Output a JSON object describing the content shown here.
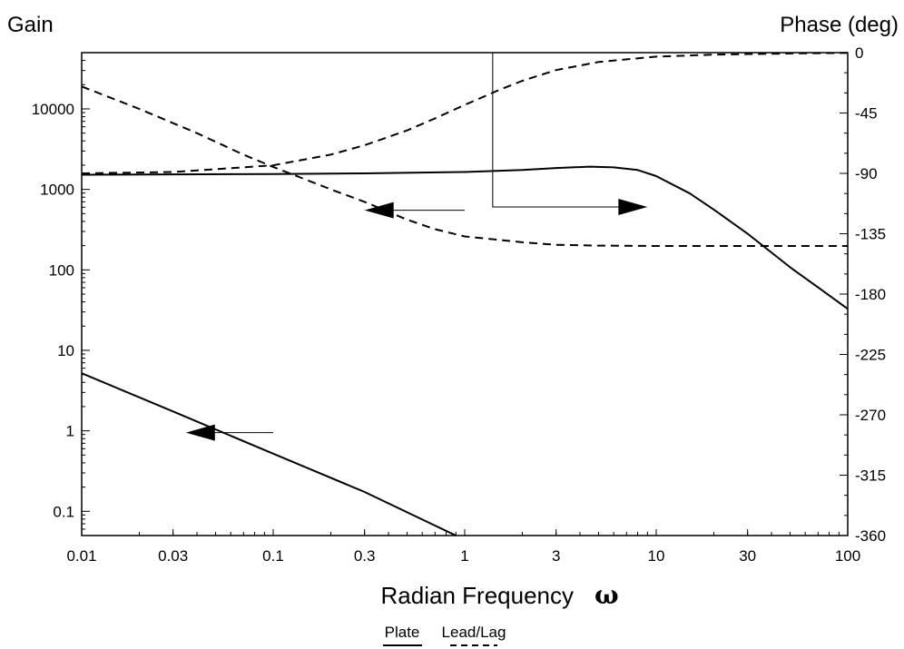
{
  "chart_data": {
    "type": "line",
    "title": "",
    "left_axis_title": "Gain",
    "right_axis_title": "Phase (deg)",
    "xlabel": "Radian Frequency",
    "xlabel_symbol": "ω",
    "x_scale": "log",
    "x_range": [
      0.01,
      100
    ],
    "x_tick_labels": [
      "0.01",
      "0.03",
      "0.1",
      "0.3",
      "1",
      "3",
      "10",
      "30",
      "100"
    ],
    "y_left_scale": "log",
    "y_left_range": [
      0.05,
      50000
    ],
    "y_left_tick_labels": [
      "0.1",
      "1",
      "10",
      "100",
      "1000",
      "10000"
    ],
    "y_right_scale": "linear",
    "y_right_range": [
      -360,
      0
    ],
    "y_right_tick_labels": [
      "0",
      "-45",
      "-90",
      "-135",
      "-180",
      "-225",
      "-270",
      "-315",
      "-360"
    ],
    "legend": {
      "placement": "bottom-center",
      "entries": [
        "Plate",
        "Lead/Lag"
      ]
    },
    "series": [
      {
        "name": "Plate",
        "axis": "left",
        "style": "solid",
        "x": [
          0.01,
          0.03,
          0.1,
          0.3,
          0.9
        ],
        "y": [
          5.2,
          1.74,
          0.52,
          0.174,
          0.05
        ]
      },
      {
        "name": "Lead/Lag",
        "axis": "left",
        "style": "dashed",
        "x": [
          0.01,
          0.02,
          0.04,
          0.07,
          0.1,
          0.2,
          0.3,
          0.5,
          0.7,
          1,
          2,
          3,
          5,
          10,
          20,
          50,
          100
        ],
        "y": [
          19000,
          10000,
          5000,
          2700,
          1900,
          1000,
          700,
          420,
          320,
          260,
          220,
          205,
          200,
          198,
          198,
          198,
          198
        ]
      },
      {
        "name": "Plate",
        "axis": "right",
        "style": "solid",
        "x": [
          0.01,
          0.1,
          0.3,
          1,
          2,
          3,
          4.5,
          6,
          8,
          10,
          15,
          20,
          30,
          50,
          70,
          100
        ],
        "y": [
          -91,
          -90.5,
          -90,
          -89,
          -87.5,
          -86,
          -85,
          -85.5,
          -87.5,
          -92,
          -105,
          -117,
          -135,
          -160,
          -175,
          -191
        ]
      },
      {
        "name": "Lead/Lag",
        "axis": "right",
        "style": "dashed",
        "x": [
          0.01,
          0.03,
          0.1,
          0.2,
          0.3,
          0.5,
          0.7,
          1,
          1.5,
          2,
          3,
          5,
          7,
          10,
          20,
          50,
          100
        ],
        "y": [
          -90,
          -89,
          -84,
          -76,
          -69,
          -58,
          -49,
          -39,
          -28,
          -21,
          -13,
          -7,
          -5,
          -3,
          -1.5,
          -0.6,
          -0.2
        ]
      }
    ],
    "annotations": [
      {
        "type": "arrow",
        "points_to": "left",
        "x_from": 1,
        "x_to": 0.3,
        "y_axis": "left",
        "y": 550
      },
      {
        "type": "arrow",
        "points_to": "left",
        "x_from": 0.1,
        "x_to": 0.035,
        "y_axis": "left",
        "y": 0.95
      },
      {
        "type": "arrow",
        "points_to": "right",
        "x_corner": 1.4,
        "x_to": 9,
        "y_axis": "right",
        "y_from": 0,
        "y_to": -115
      }
    ]
  }
}
